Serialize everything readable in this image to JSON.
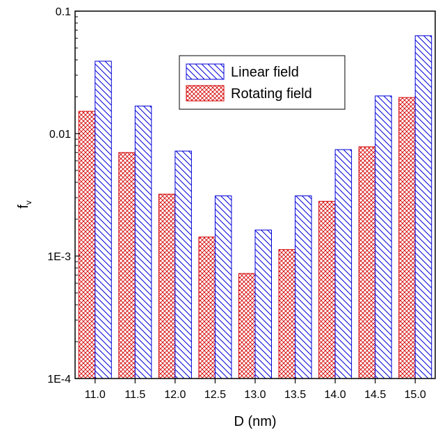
{
  "chart_data": {
    "type": "bar",
    "scale_y": "log",
    "ylabel": "f",
    "ylabel_subscript": "v",
    "xlabel": "D (nm)",
    "ylim": [
      0.0001,
      0.1
    ],
    "y_tick_labels": [
      "1E-4",
      "1E-3",
      "0.01",
      "0.1"
    ],
    "categories": [
      "11.0",
      "11.5",
      "12.0",
      "12.5",
      "13.0",
      "13.5",
      "14.0",
      "14.5",
      "15.0"
    ],
    "series": [
      {
        "name": "Rotating field",
        "pattern": "crosshatch",
        "color": "#d40000",
        "values": [
          0.0152,
          0.007,
          0.0032,
          0.00143,
          0.00072,
          0.00113,
          0.0028,
          0.0078,
          0.0197
        ]
      },
      {
        "name": "Linear field",
        "pattern": "diagonal",
        "color": "#0000d8",
        "values": [
          0.039,
          0.0168,
          0.0072,
          0.0031,
          0.00163,
          0.0031,
          0.0074,
          0.0203,
          0.063
        ]
      }
    ],
    "legend": {
      "position": "top-center",
      "entries": [
        "Linear field",
        "Rotating field"
      ]
    },
    "grid": false
  }
}
